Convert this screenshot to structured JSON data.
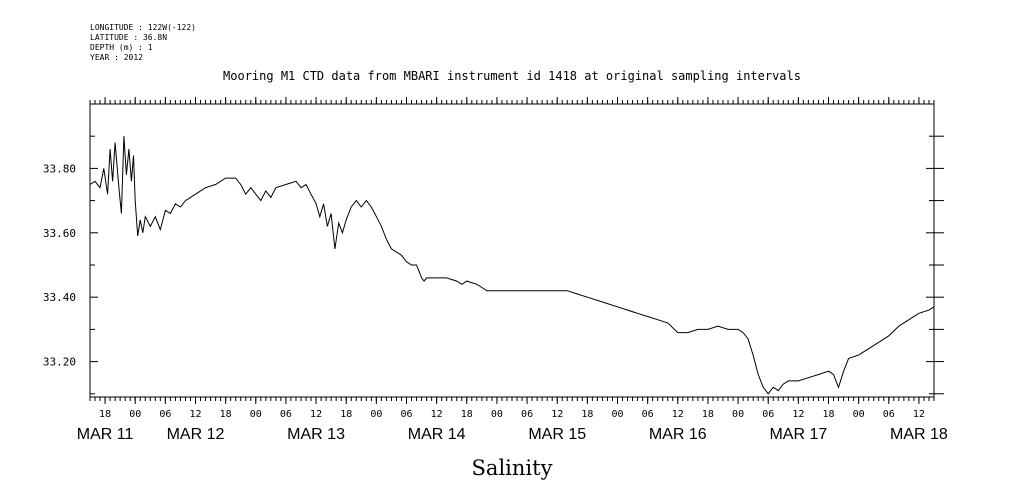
{
  "metadata": {
    "longitude": "LONGITUDE : 122W(-122)",
    "latitude": "LATITUDE : 36.8N",
    "depth": "DEPTH (m) : 1",
    "year": "YEAR : 2012"
  },
  "chart_data": {
    "type": "line",
    "title": "Mooring M1 CTD data from MBARI instrument id 1418 at original sampling intervals",
    "xlabel": "Salinity",
    "ylabel": "",
    "xlim": [
      "2012-03-11T15:00",
      "2012-03-18T15:00"
    ],
    "ylim": [
      33.09,
      34.0
    ],
    "yticks": [
      33.2,
      33.4,
      33.6,
      33.8
    ],
    "ytick_labels": [
      "33.20",
      "33.40",
      "33.60",
      "33.80"
    ],
    "xtick_labels": [
      {
        "t": "2012-03-11T18:00",
        "label": "18"
      },
      {
        "t": "2012-03-12T00:00",
        "label": "00"
      },
      {
        "t": "2012-03-12T06:00",
        "label": "06"
      },
      {
        "t": "2012-03-12T12:00",
        "label": "12"
      },
      {
        "t": "2012-03-12T18:00",
        "label": "18"
      },
      {
        "t": "2012-03-13T00:00",
        "label": "00"
      },
      {
        "t": "2012-03-13T06:00",
        "label": "06"
      },
      {
        "t": "2012-03-13T12:00",
        "label": "12"
      },
      {
        "t": "2012-03-13T18:00",
        "label": "18"
      },
      {
        "t": "2012-03-14T00:00",
        "label": "00"
      },
      {
        "t": "2012-03-14T06:00",
        "label": "06"
      },
      {
        "t": "2012-03-14T12:00",
        "label": "12"
      },
      {
        "t": "2012-03-14T18:00",
        "label": "18"
      },
      {
        "t": "2012-03-15T00:00",
        "label": "00"
      },
      {
        "t": "2012-03-15T06:00",
        "label": "06"
      },
      {
        "t": "2012-03-15T12:00",
        "label": "12"
      },
      {
        "t": "2012-03-15T18:00",
        "label": "18"
      },
      {
        "t": "2012-03-16T00:00",
        "label": "00"
      },
      {
        "t": "2012-03-16T06:00",
        "label": "06"
      },
      {
        "t": "2012-03-16T12:00",
        "label": "12"
      },
      {
        "t": "2012-03-16T18:00",
        "label": "18"
      },
      {
        "t": "2012-03-17T00:00",
        "label": "00"
      },
      {
        "t": "2012-03-17T06:00",
        "label": "06"
      },
      {
        "t": "2012-03-17T12:00",
        "label": "12"
      },
      {
        "t": "2012-03-17T18:00",
        "label": "18"
      },
      {
        "t": "2012-03-18T00:00",
        "label": "00"
      },
      {
        "t": "2012-03-18T06:00",
        "label": "06"
      },
      {
        "t": "2012-03-18T12:00",
        "label": "12"
      }
    ],
    "day_labels": [
      {
        "t": "2012-03-11T18:00",
        "label": "MAR 11"
      },
      {
        "t": "2012-03-12T12:00",
        "label": "MAR 12"
      },
      {
        "t": "2012-03-13T12:00",
        "label": "MAR 13"
      },
      {
        "t": "2012-03-14T12:00",
        "label": "MAR 14"
      },
      {
        "t": "2012-03-15T12:00",
        "label": "MAR 15"
      },
      {
        "t": "2012-03-16T12:00",
        "label": "MAR 16"
      },
      {
        "t": "2012-03-17T12:00",
        "label": "MAR 17"
      },
      {
        "t": "2012-03-18T12:00",
        "label": "MAR 18"
      }
    ],
    "series": [
      {
        "points": [
          [
            "2012-03-11T15:00",
            33.75
          ],
          [
            "2012-03-11T16:00",
            33.76
          ],
          [
            "2012-03-11T17:00",
            33.74
          ],
          [
            "2012-03-11T17:45",
            33.8
          ],
          [
            "2012-03-11T18:30",
            33.72
          ],
          [
            "2012-03-11T19:00",
            33.86
          ],
          [
            "2012-03-11T19:30",
            33.76
          ],
          [
            "2012-03-11T20:00",
            33.88
          ],
          [
            "2012-03-11T20:45",
            33.74
          ],
          [
            "2012-03-11T21:15",
            33.66
          ],
          [
            "2012-03-11T21:45",
            33.9
          ],
          [
            "2012-03-11T22:15",
            33.78
          ],
          [
            "2012-03-11T22:45",
            33.86
          ],
          [
            "2012-03-11T23:15",
            33.76
          ],
          [
            "2012-03-11T23:40",
            33.84
          ],
          [
            "2012-03-12T00:00",
            33.7
          ],
          [
            "2012-03-12T00:30",
            33.59
          ],
          [
            "2012-03-12T01:00",
            33.64
          ],
          [
            "2012-03-12T01:30",
            33.6
          ],
          [
            "2012-03-12T02:00",
            33.65
          ],
          [
            "2012-03-12T03:00",
            33.62
          ],
          [
            "2012-03-12T04:00",
            33.65
          ],
          [
            "2012-03-12T05:00",
            33.61
          ],
          [
            "2012-03-12T06:00",
            33.67
          ],
          [
            "2012-03-12T07:00",
            33.66
          ],
          [
            "2012-03-12T08:00",
            33.69
          ],
          [
            "2012-03-12T09:00",
            33.68
          ],
          [
            "2012-03-12T10:00",
            33.7
          ],
          [
            "2012-03-12T12:00",
            33.72
          ],
          [
            "2012-03-12T14:00",
            33.74
          ],
          [
            "2012-03-12T16:00",
            33.75
          ],
          [
            "2012-03-12T18:00",
            33.77
          ],
          [
            "2012-03-12T20:00",
            33.77
          ],
          [
            "2012-03-12T21:00",
            33.75
          ],
          [
            "2012-03-12T22:00",
            33.72
          ],
          [
            "2012-03-12T23:00",
            33.74
          ],
          [
            "2012-03-13T00:00",
            33.72
          ],
          [
            "2012-03-13T01:00",
            33.7
          ],
          [
            "2012-03-13T02:00",
            33.73
          ],
          [
            "2012-03-13T03:00",
            33.71
          ],
          [
            "2012-03-13T04:00",
            33.74
          ],
          [
            "2012-03-13T06:00",
            33.75
          ],
          [
            "2012-03-13T08:00",
            33.76
          ],
          [
            "2012-03-13T09:00",
            33.74
          ],
          [
            "2012-03-13T10:00",
            33.75
          ],
          [
            "2012-03-13T11:00",
            33.72
          ],
          [
            "2012-03-13T12:00",
            33.69
          ],
          [
            "2012-03-13T12:45",
            33.65
          ],
          [
            "2012-03-13T13:30",
            33.69
          ],
          [
            "2012-03-13T14:15",
            33.62
          ],
          [
            "2012-03-13T15:00",
            33.66
          ],
          [
            "2012-03-13T15:45",
            33.55
          ],
          [
            "2012-03-13T16:30",
            33.63
          ],
          [
            "2012-03-13T17:15",
            33.6
          ],
          [
            "2012-03-13T18:00",
            33.64
          ],
          [
            "2012-03-13T19:00",
            33.68
          ],
          [
            "2012-03-13T20:00",
            33.7
          ],
          [
            "2012-03-13T21:00",
            33.68
          ],
          [
            "2012-03-13T22:00",
            33.7
          ],
          [
            "2012-03-13T23:00",
            33.68
          ],
          [
            "2012-03-14T00:00",
            33.65
          ],
          [
            "2012-03-14T01:00",
            33.62
          ],
          [
            "2012-03-14T02:00",
            33.58
          ],
          [
            "2012-03-14T03:00",
            33.55
          ],
          [
            "2012-03-14T04:00",
            33.54
          ],
          [
            "2012-03-14T05:00",
            33.53
          ],
          [
            "2012-03-14T06:00",
            33.51
          ],
          [
            "2012-03-14T07:00",
            33.5
          ],
          [
            "2012-03-14T08:00",
            33.5
          ],
          [
            "2012-03-14T08:30",
            33.48
          ],
          [
            "2012-03-14T09:00",
            33.46
          ],
          [
            "2012-03-14T09:30",
            33.45
          ],
          [
            "2012-03-14T10:00",
            33.46
          ],
          [
            "2012-03-14T12:00",
            33.46
          ],
          [
            "2012-03-14T14:00",
            33.46
          ],
          [
            "2012-03-14T16:00",
            33.45
          ],
          [
            "2012-03-14T17:00",
            33.44
          ],
          [
            "2012-03-14T18:00",
            33.45
          ],
          [
            "2012-03-14T20:00",
            33.44
          ],
          [
            "2012-03-14T21:00",
            33.43
          ],
          [
            "2012-03-14T22:00",
            33.42
          ],
          [
            "2012-03-15T00:00",
            33.42
          ],
          [
            "2012-03-15T06:00",
            33.42
          ],
          [
            "2012-03-15T12:00",
            33.42
          ],
          [
            "2012-03-15T14:00",
            33.42
          ],
          [
            "2012-03-15T16:00",
            33.41
          ],
          [
            "2012-03-15T18:00",
            33.4
          ],
          [
            "2012-03-15T20:00",
            33.39
          ],
          [
            "2012-03-15T22:00",
            33.38
          ],
          [
            "2012-03-16T00:00",
            33.37
          ],
          [
            "2012-03-16T02:00",
            33.36
          ],
          [
            "2012-03-16T04:00",
            33.35
          ],
          [
            "2012-03-16T06:00",
            33.34
          ],
          [
            "2012-03-16T08:00",
            33.33
          ],
          [
            "2012-03-16T10:00",
            33.32
          ],
          [
            "2012-03-16T12:00",
            33.29
          ],
          [
            "2012-03-16T14:00",
            33.29
          ],
          [
            "2012-03-16T16:00",
            33.3
          ],
          [
            "2012-03-16T18:00",
            33.3
          ],
          [
            "2012-03-16T20:00",
            33.31
          ],
          [
            "2012-03-16T22:00",
            33.3
          ],
          [
            "2012-03-17T00:00",
            33.3
          ],
          [
            "2012-03-17T01:00",
            33.29
          ],
          [
            "2012-03-17T02:00",
            33.27
          ],
          [
            "2012-03-17T03:00",
            33.22
          ],
          [
            "2012-03-17T04:00",
            33.16
          ],
          [
            "2012-03-17T05:00",
            33.12
          ],
          [
            "2012-03-17T06:00",
            33.1
          ],
          [
            "2012-03-17T07:00",
            33.12
          ],
          [
            "2012-03-17T08:00",
            33.11
          ],
          [
            "2012-03-17T09:00",
            33.13
          ],
          [
            "2012-03-17T10:00",
            33.14
          ],
          [
            "2012-03-17T12:00",
            33.14
          ],
          [
            "2012-03-17T14:00",
            33.15
          ],
          [
            "2012-03-17T16:00",
            33.16
          ],
          [
            "2012-03-17T18:00",
            33.17
          ],
          [
            "2012-03-17T19:00",
            33.16
          ],
          [
            "2012-03-17T20:00",
            33.12
          ],
          [
            "2012-03-17T21:00",
            33.17
          ],
          [
            "2012-03-17T22:00",
            33.21
          ],
          [
            "2012-03-18T00:00",
            33.22
          ],
          [
            "2012-03-18T02:00",
            33.24
          ],
          [
            "2012-03-18T04:00",
            33.26
          ],
          [
            "2012-03-18T06:00",
            33.28
          ],
          [
            "2012-03-18T08:00",
            33.31
          ],
          [
            "2012-03-18T10:00",
            33.33
          ],
          [
            "2012-03-18T12:00",
            33.35
          ],
          [
            "2012-03-18T14:00",
            33.36
          ],
          [
            "2012-03-18T15:00",
            33.37
          ]
        ]
      }
    ]
  }
}
